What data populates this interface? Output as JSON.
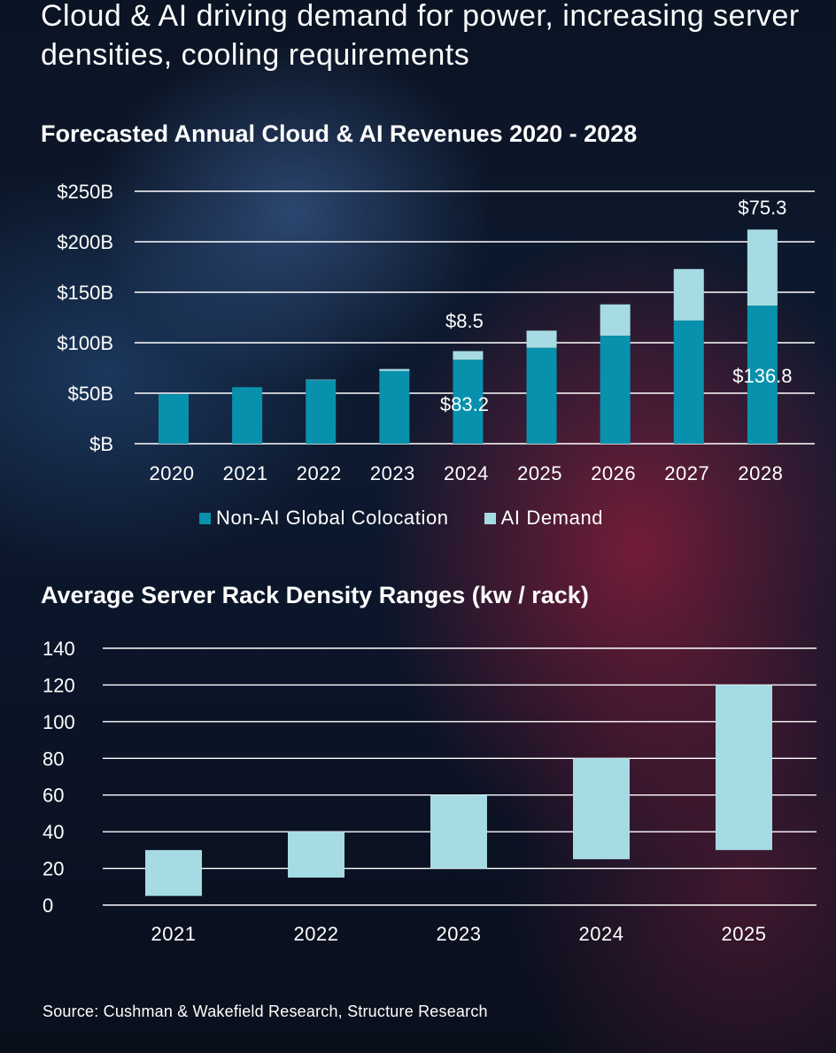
{
  "headline": "Cloud & AI driving demand for power, increasing server densities, cooling requirements",
  "colors": {
    "non_ai": "#0891ad",
    "ai": "#a6dbe4",
    "range": "#a6dbe4",
    "grid": "#ffffff"
  },
  "legend": {
    "non_ai_label": "Non-AI Global Colocation",
    "ai_label": "AI Demand"
  },
  "source": "Source: Cushman & Wakefield Research, Structure Research",
  "chart_data": [
    {
      "type": "bar",
      "stacked": true,
      "title": "Forecasted Annual Cloud & AI Revenues 2020 - 2028",
      "categories": [
        "2020",
        "2021",
        "2022",
        "2023",
        "2024",
        "2025",
        "2026",
        "2027",
        "2028"
      ],
      "y_ticks": [
        "$B",
        "$50B",
        "$100B",
        "$150B",
        "$200B",
        "$250B"
      ],
      "ylim": [
        0,
        250
      ],
      "series": [
        {
          "name": "Non-AI Global Colocation",
          "values": [
            49,
            56,
            63,
            72,
            83.2,
            95,
            107,
            122,
            136.8
          ]
        },
        {
          "name": "AI Demand",
          "values": [
            0,
            0,
            0.5,
            2,
            8.5,
            17,
            31,
            51,
            75.3
          ]
        }
      ],
      "annotations": [
        {
          "category": "2024",
          "series": "AI Demand",
          "text": "$8.5"
        },
        {
          "category": "2024",
          "series": "Non-AI Global Colocation",
          "text": "$83.2"
        },
        {
          "category": "2028",
          "series": "AI Demand",
          "text": "$75.3"
        },
        {
          "category": "2028",
          "series": "Non-AI Global Colocation",
          "text": "$136.8"
        }
      ],
      "legend_position": "bottom"
    },
    {
      "type": "bar",
      "variant": "floating-range",
      "title": "Average Server Rack Density Ranges (kw / rack)",
      "categories": [
        "2021",
        "2022",
        "2023",
        "2024",
        "2025"
      ],
      "y_ticks": [
        "0",
        "20",
        "40",
        "60",
        "80",
        "100",
        "120",
        "140"
      ],
      "ylim": [
        0,
        140
      ],
      "ranges": [
        [
          5,
          30
        ],
        [
          15,
          40
        ],
        [
          20,
          60
        ],
        [
          25,
          80
        ],
        [
          30,
          120
        ]
      ]
    }
  ]
}
